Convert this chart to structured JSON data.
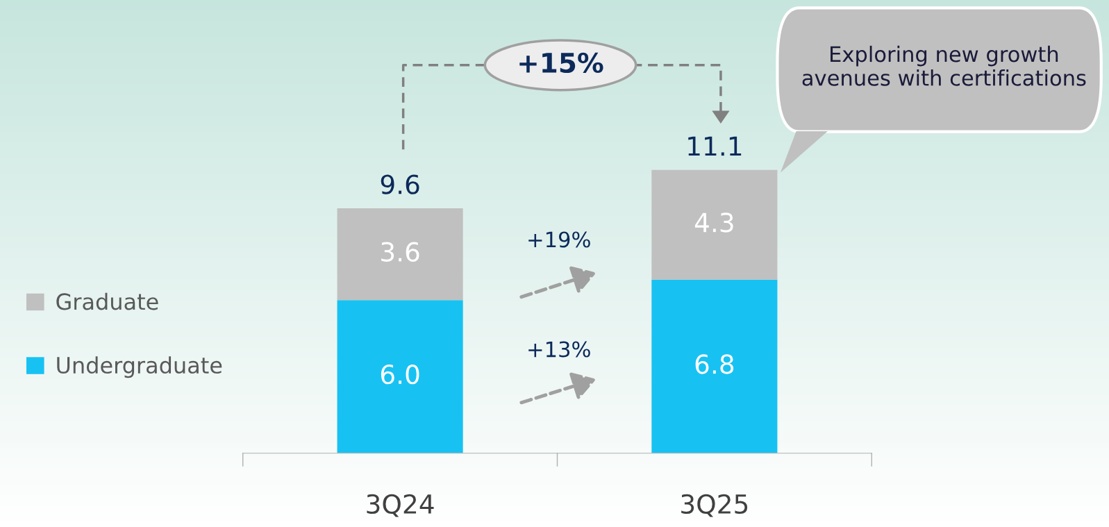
{
  "chart_data": {
    "type": "bar",
    "stacked": true,
    "categories": [
      "3Q24",
      "3Q25"
    ],
    "series": [
      {
        "name": "Undergraduate",
        "color": "#17c2f2",
        "values": [
          6.0,
          6.8
        ],
        "value_labels": [
          "6.0",
          "6.8"
        ]
      },
      {
        "name": "Graduate",
        "color": "#c0c0c0",
        "values": [
          3.6,
          4.3
        ],
        "value_labels": [
          "3.6",
          "4.3"
        ]
      }
    ],
    "totals": [
      "9.6",
      "11.1"
    ],
    "legend": "left",
    "annotations": [
      "+15%",
      "+19%",
      "+13%",
      "Exploring new growth avenues with certifications"
    ]
  }
}
